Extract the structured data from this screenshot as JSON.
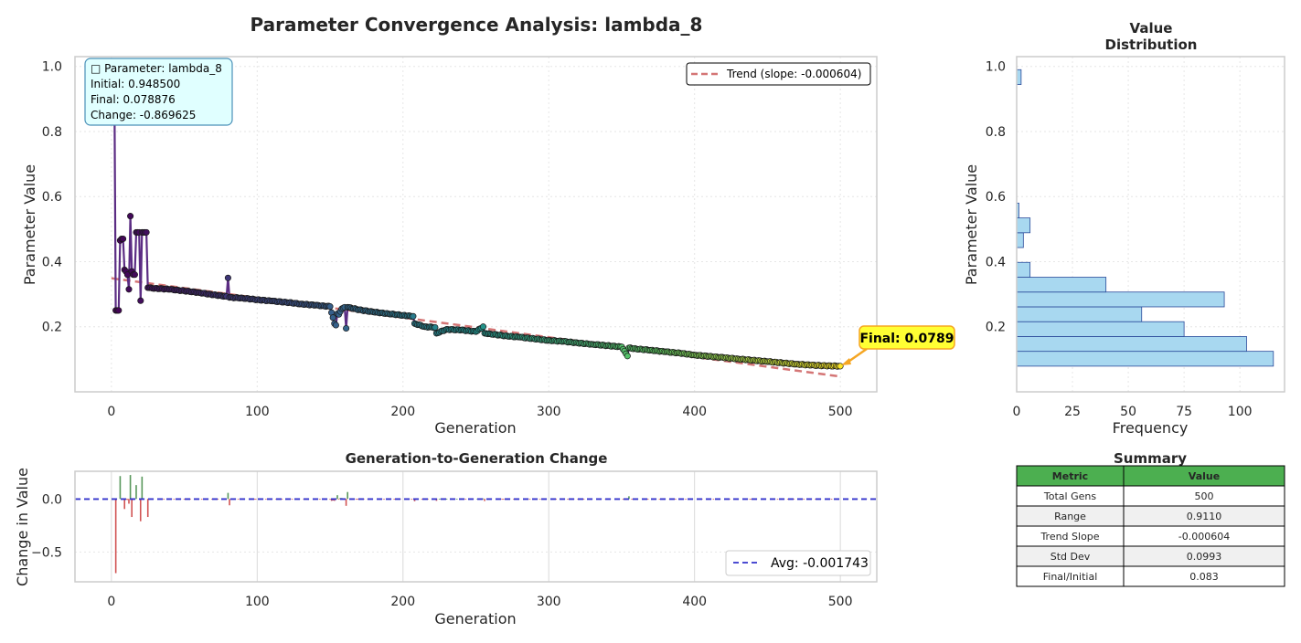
{
  "chart_data": [
    {
      "id": "main",
      "type": "line",
      "title": "Parameter Convergence Analysis: lambda_8",
      "xlabel": "Generation",
      "ylabel": "Parameter Value",
      "xlim": [
        -25,
        525
      ],
      "ylim": [
        0.0,
        1.03
      ],
      "xticks": [
        0,
        100,
        200,
        300,
        400,
        500
      ],
      "yticks": [
        0.2,
        0.4,
        0.6,
        0.8,
        1.0
      ],
      "grid": true,
      "legend_placement": "top-right",
      "colormap": "viridis",
      "line_color": "#5b2c83",
      "info_box": [
        "□ Parameter: lambda_8",
        "Initial: 0.948500",
        "Final: 0.078876",
        "Change: -0.869625"
      ],
      "final_annotation": {
        "label": "Final: 0.0789",
        "x": 500,
        "y": 0.0789
      },
      "trend": {
        "label": "Trend (slope: -0.000604)",
        "slope": -0.000604,
        "intercept": 0.349,
        "color": "#d47575"
      },
      "initial": 0.9485,
      "final": 0.078876,
      "key_points": [
        [
          0,
          0.9485
        ],
        [
          3,
          0.25
        ],
        [
          4,
          0.25
        ],
        [
          5,
          0.25
        ],
        [
          6,
          0.465
        ],
        [
          7,
          0.47
        ],
        [
          8,
          0.47
        ],
        [
          9,
          0.375
        ],
        [
          10,
          0.37
        ],
        [
          11,
          0.36
        ],
        [
          12,
          0.315
        ],
        [
          13,
          0.54
        ],
        [
          14,
          0.37
        ],
        [
          15,
          0.36
        ],
        [
          16,
          0.36
        ],
        [
          17,
          0.49
        ],
        [
          18,
          0.49
        ],
        [
          19,
          0.49
        ],
        [
          20,
          0.28
        ],
        [
          21,
          0.49
        ],
        [
          22,
          0.49
        ],
        [
          23,
          0.49
        ],
        [
          24,
          0.49
        ],
        [
          25,
          0.32
        ],
        [
          30,
          0.318
        ],
        [
          40,
          0.315
        ],
        [
          50,
          0.31
        ],
        [
          60,
          0.305
        ],
        [
          70,
          0.298
        ],
        [
          79,
          0.293
        ],
        [
          80,
          0.35
        ],
        [
          81,
          0.29
        ],
        [
          90,
          0.288
        ],
        [
          100,
          0.283
        ],
        [
          110,
          0.279
        ],
        [
          120,
          0.275
        ],
        [
          130,
          0.27
        ],
        [
          140,
          0.266
        ],
        [
          150,
          0.262
        ],
        [
          153,
          0.21
        ],
        [
          154,
          0.205
        ],
        [
          155,
          0.24
        ],
        [
          156,
          0.238
        ],
        [
          158,
          0.255
        ],
        [
          160,
          0.26
        ],
        [
          161,
          0.195
        ],
        [
          162,
          0.26
        ],
        [
          170,
          0.252
        ],
        [
          180,
          0.245
        ],
        [
          190,
          0.24
        ],
        [
          200,
          0.235
        ],
        [
          207,
          0.232
        ],
        [
          208,
          0.21
        ],
        [
          215,
          0.2
        ],
        [
          222,
          0.198
        ],
        [
          223,
          0.18
        ],
        [
          230,
          0.192
        ],
        [
          240,
          0.19
        ],
        [
          250,
          0.185
        ],
        [
          255,
          0.2
        ],
        [
          256,
          0.18
        ],
        [
          260,
          0.178
        ],
        [
          270,
          0.172
        ],
        [
          280,
          0.168
        ],
        [
          290,
          0.163
        ],
        [
          300,
          0.158
        ],
        [
          310,
          0.155
        ],
        [
          320,
          0.15
        ],
        [
          330,
          0.146
        ],
        [
          340,
          0.142
        ],
        [
          350,
          0.138
        ],
        [
          354,
          0.11
        ],
        [
          355,
          0.135
        ],
        [
          360,
          0.132
        ],
        [
          370,
          0.128
        ],
        [
          380,
          0.123
        ],
        [
          390,
          0.119
        ],
        [
          400,
          0.113
        ],
        [
          410,
          0.109
        ],
        [
          420,
          0.105
        ],
        [
          430,
          0.101
        ],
        [
          440,
          0.097
        ],
        [
          450,
          0.093
        ],
        [
          460,
          0.089
        ],
        [
          470,
          0.085
        ],
        [
          480,
          0.082
        ],
        [
          490,
          0.08
        ],
        [
          500,
          0.0789
        ]
      ]
    },
    {
      "id": "hist",
      "type": "bar",
      "orientation": "horizontal",
      "title": "Value\nDistribution",
      "xlabel": "Frequency",
      "ylabel": "Parameter Value",
      "xlim": [
        0,
        120
      ],
      "ylim": [
        0.0,
        1.03
      ],
      "xticks": [
        0,
        25,
        50,
        75,
        100
      ],
      "yticks": [
        0.2,
        0.4,
        0.6,
        0.8,
        1.0
      ],
      "bin_width": 0.04555,
      "bins_start": 0.0789,
      "counts": [
        115,
        103,
        75,
        56,
        93,
        40,
        6,
        0,
        3,
        6,
        1,
        0,
        0,
        0,
        0,
        0,
        0,
        0,
        0,
        2
      ],
      "bar_color": "#a8d8f0",
      "edge_color": "#2a4a9a"
    },
    {
      "id": "diff",
      "type": "bar",
      "title": "Generation-to-Generation Change",
      "xlabel": "Generation",
      "ylabel": "Change in Value",
      "xlim": [
        -25,
        525
      ],
      "ylim": [
        -0.78,
        0.26
      ],
      "xticks": [
        0,
        100,
        200,
        300,
        400,
        500
      ],
      "yticks": [
        -0.5,
        0.0
      ],
      "avg": {
        "label": "Avg: -0.001743",
        "value": -0.001743,
        "color": "#3333cc"
      },
      "legend_placement": "bottom-right",
      "pos_color": "#2e7d32",
      "neg_color": "#c62828"
    }
  ],
  "summary": {
    "title": "Summary",
    "header": [
      "Metric",
      "Value"
    ],
    "rows": [
      [
        "Total Gens",
        "500"
      ],
      [
        "Range",
        "0.9110"
      ],
      [
        "Trend Slope",
        "-0.000604"
      ],
      [
        "Std Dev",
        "0.0993"
      ],
      [
        "Final/Initial",
        "0.083"
      ]
    ],
    "header_color": "#4caf50",
    "alt_row_color": "#f0f0f0"
  }
}
